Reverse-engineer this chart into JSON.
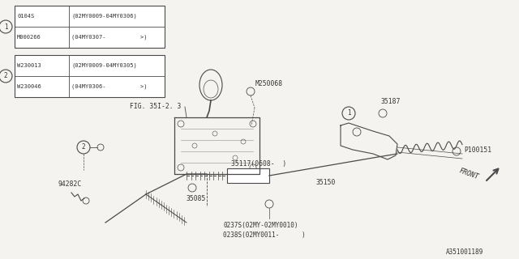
{
  "bg_color": "#f5f3ef",
  "line_color": "#4a4a4a",
  "text_color": "#333333",
  "part_number": "A351001189",
  "table1_rows": [
    [
      "0104S",
      "(02MY0009-04MY0306)"
    ],
    [
      "M000266",
      "(04MY0307-          >)"
    ]
  ],
  "table2_rows": [
    [
      "W230013",
      "(02MY0009-04MY0305)"
    ],
    [
      "W230046",
      "(04MY0306-          >)"
    ]
  ]
}
